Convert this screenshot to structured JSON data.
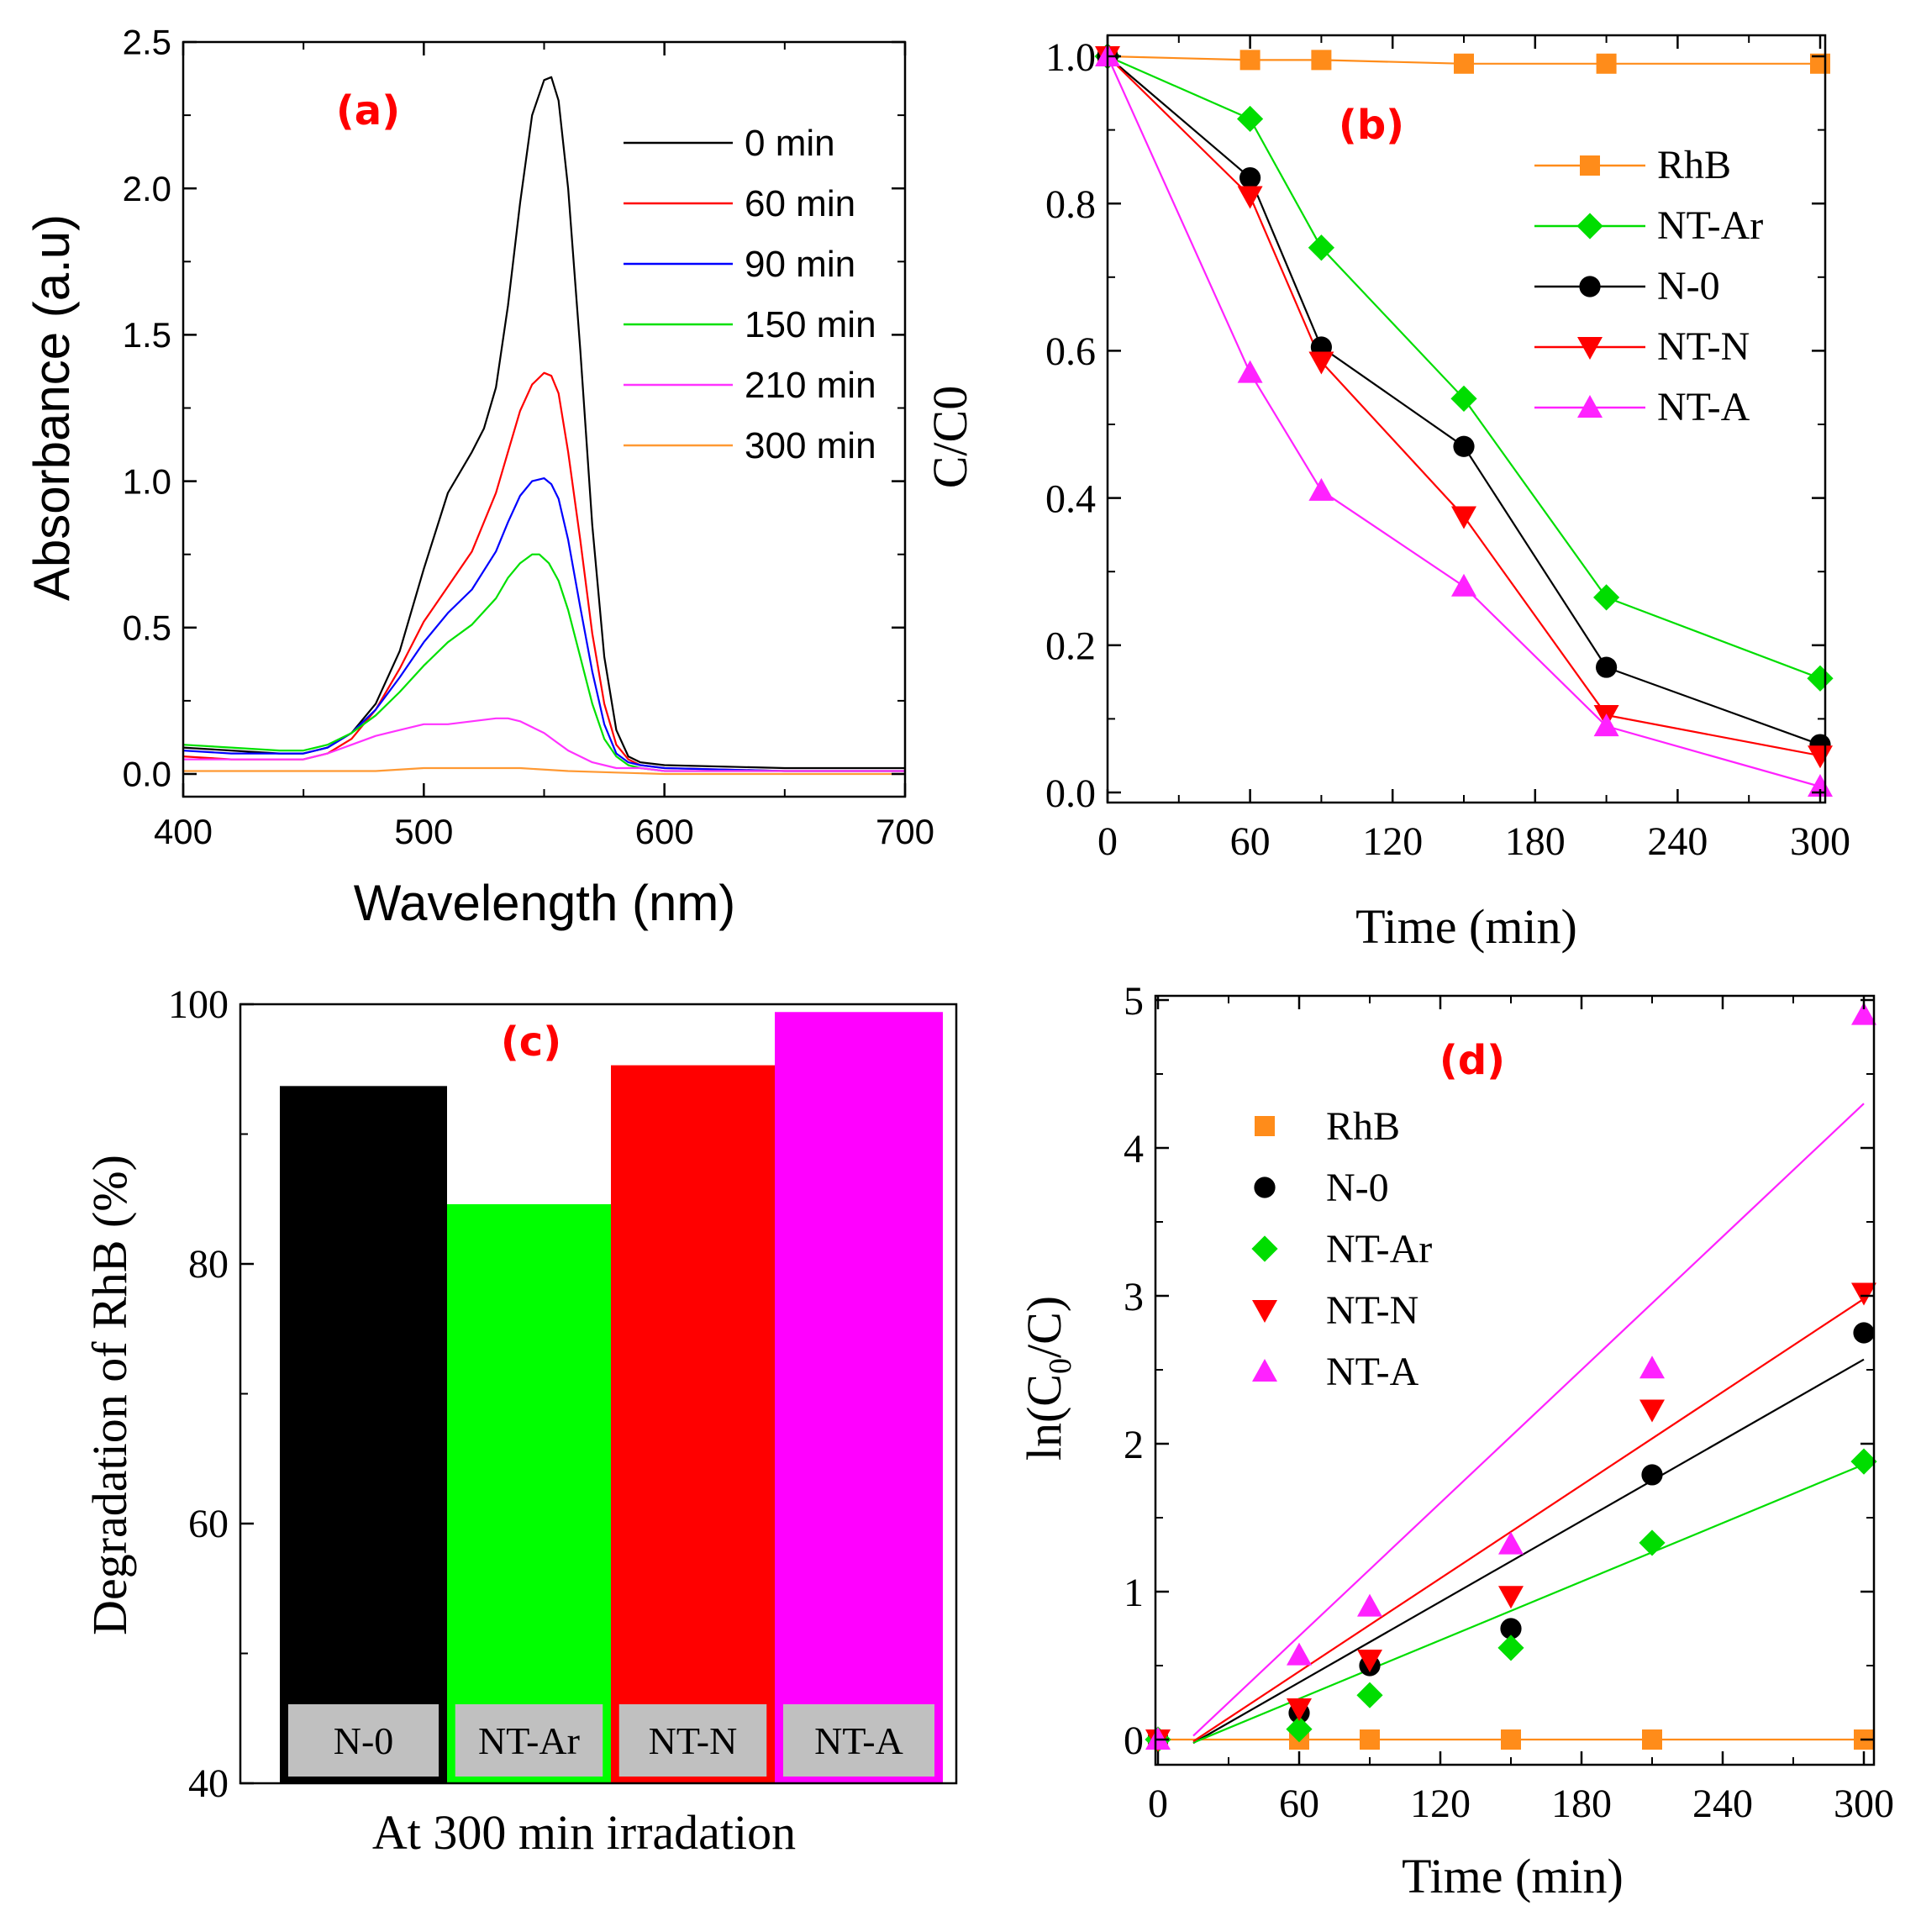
{
  "chart_data": [
    {
      "panel": "(a)",
      "type": "line",
      "xlabel": "Wavelength (nm)",
      "ylabel": "Absorbance (a.u)",
      "xlim": [
        400,
        700
      ],
      "ylim": [
        -0.08,
        2.5
      ],
      "xticks": [
        "400",
        "500",
        "600",
        "700"
      ],
      "yticks": [
        "0.0",
        "0.5",
        "1.0",
        "1.5",
        "2.0",
        "2.5"
      ],
      "legend_position": "top-right",
      "series": [
        {
          "name": "0 min",
          "color": "#000000",
          "x": [
            400,
            420,
            440,
            450,
            460,
            470,
            480,
            490,
            500,
            510,
            520,
            525,
            530,
            535,
            540,
            545,
            550,
            553,
            556,
            560,
            565,
            570,
            575,
            580,
            585,
            590,
            600,
            650,
            700
          ],
          "y": [
            0.09,
            0.08,
            0.07,
            0.07,
            0.09,
            0.14,
            0.24,
            0.42,
            0.7,
            0.96,
            1.1,
            1.18,
            1.32,
            1.6,
            1.95,
            2.25,
            2.37,
            2.38,
            2.3,
            2.0,
            1.45,
            0.85,
            0.4,
            0.15,
            0.06,
            0.04,
            0.03,
            0.02,
            0.02
          ]
        },
        {
          "name": "60 min",
          "color": "#ff0000",
          "x": [
            400,
            420,
            440,
            450,
            460,
            470,
            480,
            490,
            500,
            510,
            520,
            530,
            535,
            540,
            545,
            550,
            553,
            556,
            560,
            565,
            570,
            575,
            580,
            585,
            590,
            600,
            650,
            700
          ],
          "y": [
            0.06,
            0.05,
            0.05,
            0.05,
            0.07,
            0.12,
            0.22,
            0.36,
            0.52,
            0.64,
            0.76,
            0.96,
            1.1,
            1.24,
            1.33,
            1.37,
            1.36,
            1.3,
            1.1,
            0.8,
            0.48,
            0.24,
            0.1,
            0.05,
            0.03,
            0.02,
            0.01,
            0.01
          ]
        },
        {
          "name": "90 min",
          "color": "#0000ff",
          "x": [
            400,
            420,
            440,
            450,
            460,
            470,
            480,
            490,
            500,
            510,
            520,
            530,
            535,
            540,
            545,
            550,
            553,
            556,
            560,
            565,
            570,
            575,
            580,
            585,
            590,
            600,
            650,
            700
          ],
          "y": [
            0.08,
            0.07,
            0.07,
            0.07,
            0.09,
            0.14,
            0.22,
            0.33,
            0.45,
            0.55,
            0.63,
            0.76,
            0.86,
            0.95,
            1.0,
            1.01,
            0.99,
            0.94,
            0.8,
            0.57,
            0.35,
            0.17,
            0.07,
            0.04,
            0.03,
            0.02,
            0.01,
            0.01
          ]
        },
        {
          "name": "150 min",
          "color": "#00e000",
          "x": [
            400,
            420,
            440,
            450,
            460,
            470,
            480,
            490,
            500,
            510,
            520,
            530,
            535,
            540,
            545,
            548,
            552,
            556,
            560,
            565,
            570,
            575,
            580,
            585,
            590,
            600,
            650,
            700
          ],
          "y": [
            0.1,
            0.09,
            0.08,
            0.08,
            0.1,
            0.14,
            0.2,
            0.28,
            0.37,
            0.45,
            0.51,
            0.6,
            0.67,
            0.72,
            0.75,
            0.75,
            0.72,
            0.66,
            0.56,
            0.4,
            0.24,
            0.12,
            0.06,
            0.03,
            0.02,
            0.01,
            0.01,
            0.01
          ]
        },
        {
          "name": "210 min",
          "color": "#ff33ff",
          "x": [
            400,
            420,
            440,
            450,
            460,
            470,
            480,
            490,
            500,
            510,
            520,
            530,
            535,
            540,
            545,
            550,
            555,
            560,
            570,
            580,
            590,
            600,
            650,
            700
          ],
          "y": [
            0.05,
            0.05,
            0.05,
            0.05,
            0.07,
            0.1,
            0.13,
            0.15,
            0.17,
            0.17,
            0.18,
            0.19,
            0.19,
            0.18,
            0.16,
            0.14,
            0.11,
            0.08,
            0.04,
            0.02,
            0.02,
            0.01,
            0.01,
            0.01
          ]
        },
        {
          "name": "300 min",
          "color": "#ff9933",
          "x": [
            400,
            450,
            480,
            500,
            520,
            540,
            560,
            580,
            600,
            700
          ],
          "y": [
            0.01,
            0.01,
            0.01,
            0.02,
            0.02,
            0.02,
            0.01,
            0.005,
            0.0,
            0.0
          ]
        }
      ]
    },
    {
      "panel": "(b)",
      "type": "line",
      "xlabel": "Time (min)",
      "ylabel": "C/C0",
      "xlim": [
        0,
        300
      ],
      "ylim": [
        0,
        1.0
      ],
      "xticks": [
        "0",
        "60",
        "120",
        "180",
        "240",
        "300"
      ],
      "yticks": [
        "0.0",
        "0.2",
        "0.4",
        "0.6",
        "0.8",
        "1.0"
      ],
      "legend_position": "top-right",
      "x": [
        0,
        60,
        90,
        150,
        210,
        300
      ],
      "series": [
        {
          "name": "RhB",
          "color": "#ff8c1a",
          "marker": "square",
          "values": [
            1.0,
            0.995,
            0.995,
            0.99,
            0.99,
            0.99
          ]
        },
        {
          "name": "NT-Ar",
          "color": "#00dd00",
          "marker": "diamond",
          "values": [
            1.0,
            0.915,
            0.74,
            0.535,
            0.265,
            0.155
          ]
        },
        {
          "name": "N-0",
          "color": "#000000",
          "marker": "circle",
          "values": [
            1.0,
            0.835,
            0.605,
            0.47,
            0.17,
            0.065
          ]
        },
        {
          "name": "NT-N",
          "color": "#ff0000",
          "marker": "triangle-down",
          "values": [
            1.0,
            0.81,
            0.585,
            0.375,
            0.105,
            0.05
          ]
        },
        {
          "name": "NT-A",
          "color": "#ff22ff",
          "marker": "triangle-up",
          "values": [
            1.0,
            0.57,
            0.41,
            0.28,
            0.09,
            0.008
          ]
        }
      ]
    },
    {
      "panel": "(c)",
      "type": "bar",
      "xlabel": "At 300 min irradation",
      "ylabel": "Degradation of RhB (%)",
      "ylim": [
        40,
        100
      ],
      "yticks": [
        "40",
        "60",
        "80",
        "100"
      ],
      "categories": [
        "N-0",
        "NT-Ar",
        "NT-N",
        "NT-A"
      ],
      "values": [
        93.7,
        84.6,
        95.3,
        99.4
      ],
      "colors": [
        "#000000",
        "#00ff00",
        "#ff0000",
        "#ff00ff"
      ]
    },
    {
      "panel": "(d)",
      "type": "scatter",
      "xlabel": "Time (min)",
      "ylabel": "ln(C0/C)",
      "xlim": [
        0,
        300
      ],
      "ylim": [
        -0.1,
        5
      ],
      "xticks": [
        "0",
        "60",
        "120",
        "180",
        "240",
        "300"
      ],
      "yticks": [
        "0",
        "1",
        "2",
        "3",
        "4",
        "5"
      ],
      "legend_position": "top-left",
      "x": [
        0,
        60,
        90,
        150,
        210,
        300
      ],
      "series": [
        {
          "name": "RhB",
          "color": "#ff8c1a",
          "marker": "square",
          "values": [
            0.0,
            0.0,
            0.0,
            0.0,
            0.0,
            0.0
          ],
          "fit": [
            0.0,
            0.0
          ]
        },
        {
          "name": "N-0",
          "color": "#000000",
          "marker": "circle",
          "values": [
            0.0,
            0.18,
            0.5,
            0.75,
            1.79,
            2.75
          ],
          "fit": [
            -0.16,
            0.0091
          ]
        },
        {
          "name": "NT-Ar",
          "color": "#00dd00",
          "marker": "diamond",
          "values": [
            0.0,
            0.07,
            0.3,
            0.62,
            1.33,
            1.88
          ],
          "fit": [
            -0.12,
            0.0066
          ]
        },
        {
          "name": "NT-N",
          "color": "#ff0000",
          "marker": "triangle-down",
          "values": [
            0.0,
            0.21,
            0.54,
            0.97,
            2.23,
            3.02
          ],
          "fit": [
            -0.17,
            0.0105
          ]
        },
        {
          "name": "NT-A",
          "color": "#ff22ff",
          "marker": "triangle-up",
          "values": [
            0.0,
            0.57,
            0.9,
            1.32,
            2.51,
            4.9
          ],
          "fit": [
            -0.2,
            0.015
          ]
        }
      ]
    }
  ]
}
